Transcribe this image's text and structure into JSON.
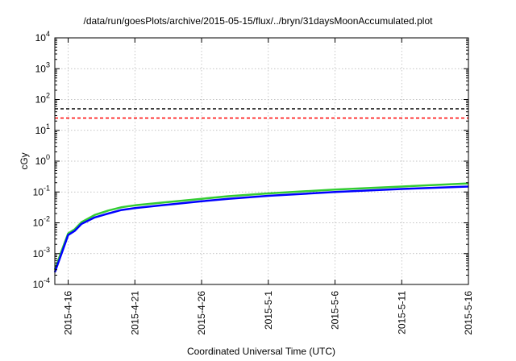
{
  "chart_data": {
    "type": "line",
    "title": "/data/run/goesPlots/archive/2015-05-15/flux/../bryn/31daysMoonAccumulated.plot",
    "xlabel": "Coordinated Universal Time (UTC)",
    "ylabel": "cGy",
    "yscale": "log",
    "ylim": [
      0.0001,
      10000
    ],
    "xlim": [
      "2015-04-15",
      "2015-05-16"
    ],
    "x_ticks": [
      "2015-4-16",
      "2015-4-21",
      "2015-4-26",
      "2015-5-1",
      "2015-5-6",
      "2015-5-11",
      "2015-5-16"
    ],
    "y_ticks": [
      {
        "base": "10",
        "exp": "-4"
      },
      {
        "base": "10",
        "exp": "-3"
      },
      {
        "base": "10",
        "exp": "-2"
      },
      {
        "base": "10",
        "exp": "-1"
      },
      {
        "base": "10",
        "exp": "0"
      },
      {
        "base": "10",
        "exp": "1"
      },
      {
        "base": "10",
        "exp": "2"
      },
      {
        "base": "10",
        "exp": "3"
      },
      {
        "base": "10",
        "exp": "4"
      }
    ],
    "grid": true,
    "legend": false,
    "reference_lines": [
      {
        "y": 50,
        "color": "#000000",
        "style": "dashed"
      },
      {
        "y": 25,
        "color": "#ff0000",
        "style": "dashed"
      }
    ],
    "series": [
      {
        "color": "#33cc33",
        "x": [
          "2015-04-15",
          "2015-04-15T12:00",
          "2015-04-16",
          "2015-04-16T12:00",
          "2015-04-17",
          "2015-04-18",
          "2015-04-19",
          "2015-04-20",
          "2015-04-21",
          "2015-04-23",
          "2015-04-26",
          "2015-04-28",
          "2015-05-01",
          "2015-05-06",
          "2015-05-11",
          "2015-05-16"
        ],
        "values": [
          0.0003,
          0.0012,
          0.0045,
          0.0062,
          0.0105,
          0.018,
          0.025,
          0.032,
          0.037,
          0.045,
          0.06,
          0.073,
          0.09,
          0.12,
          0.15,
          0.19
        ]
      },
      {
        "color": "#0000ff",
        "x": [
          "2015-04-15",
          "2015-04-15T12:00",
          "2015-04-16",
          "2015-04-16T12:00",
          "2015-04-17",
          "2015-04-18",
          "2015-04-19",
          "2015-04-20",
          "2015-04-21",
          "2015-04-23",
          "2015-04-26",
          "2015-04-28",
          "2015-05-01",
          "2015-05-06",
          "2015-05-11",
          "2015-05-16"
        ],
        "values": [
          0.00025,
          0.001,
          0.004,
          0.0055,
          0.0092,
          0.015,
          0.02,
          0.026,
          0.03,
          0.037,
          0.05,
          0.06,
          0.075,
          0.1,
          0.125,
          0.15
        ]
      }
    ]
  }
}
